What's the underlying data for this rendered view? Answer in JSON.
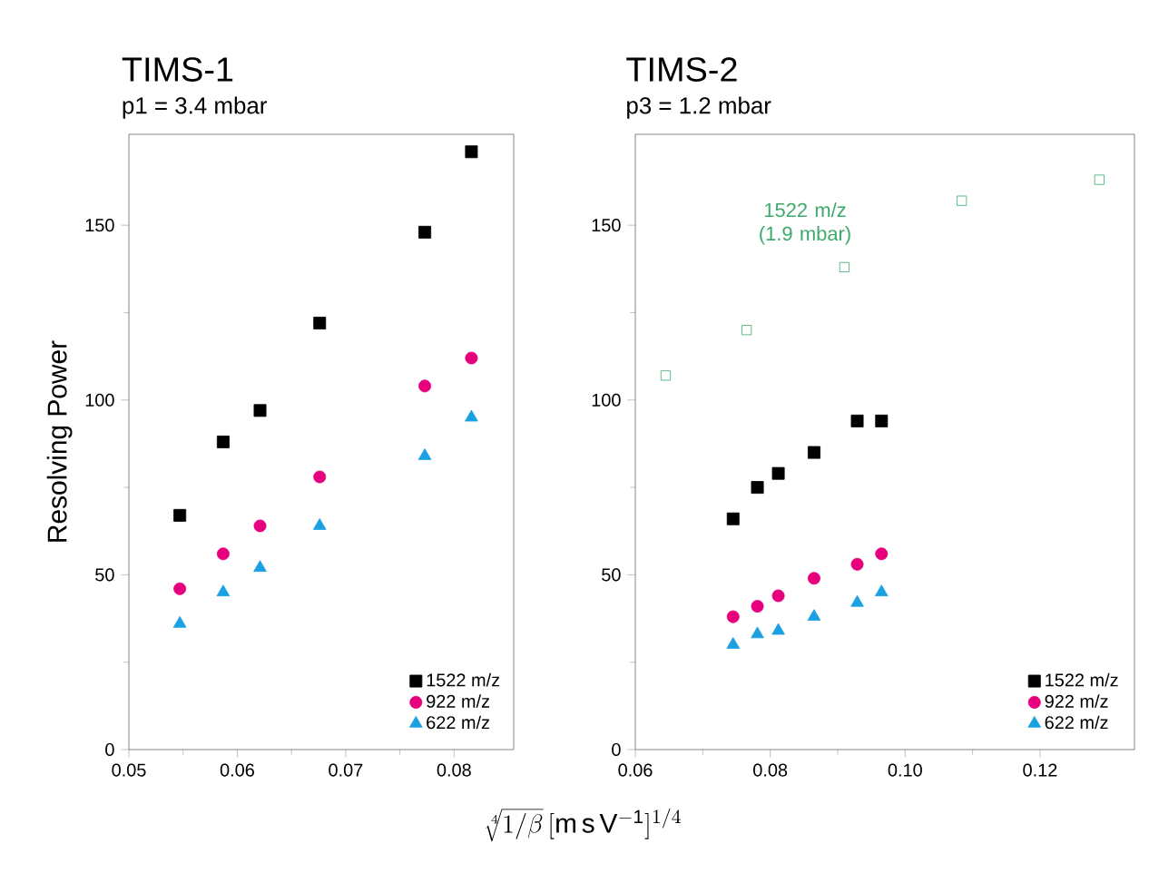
{
  "chart_data": [
    {
      "type": "scatter",
      "title": "TIMS-1",
      "subtitle": "p1 = 3.4 mbar",
      "ylabel": "Resolving Power",
      "xlabel": "\\sqrt[4]{1/\\beta}\\,[\\mathrm{m\\,s\\,V^{-1}}]^{1/4}",
      "xlim": [
        0.05,
        0.0855
      ],
      "ylim": [
        0,
        176
      ],
      "xticks": [
        0.05,
        0.06,
        0.07,
        0.08
      ],
      "yticks": [
        0,
        50,
        100,
        150
      ],
      "legend": "bottom right",
      "grid": false,
      "x": [
        0.0547,
        0.0587,
        0.0621,
        0.0676,
        0.0773,
        0.0816
      ],
      "series": [
        {
          "name": "1522 m/z",
          "color": "#000000",
          "marker": "square",
          "values": [
            67,
            88,
            97,
            122,
            148,
            171
          ]
        },
        {
          "name": "922 m/z",
          "color": "#e6007e",
          "marker": "circle",
          "values": [
            46,
            56,
            64,
            78,
            104,
            112
          ]
        },
        {
          "name": "622 m/z",
          "color": "#1ba1e2",
          "marker": "triangle",
          "values": [
            36,
            45,
            52,
            64,
            84,
            95
          ]
        }
      ]
    },
    {
      "type": "scatter",
      "title": "TIMS-2",
      "subtitle": "p3 = 1.2 mbar",
      "xlim": [
        0.06,
        0.134
      ],
      "ylim": [
        0,
        176
      ],
      "xticks": [
        0.06,
        0.08,
        {
          "value": 0.1,
          "label": "0.10"
        },
        0.12
      ],
      "yticks": [
        0,
        50,
        100,
        150
      ],
      "legend": "bottom right",
      "grid": false,
      "annotations": [
        "1522 m/z (1.9 mbar)"
      ],
      "series": [
        {
          "name": "1522 m/z",
          "color": "#000000",
          "marker": "square",
          "x": [
            0.0745,
            0.0781,
            0.0812,
            0.0865,
            0.0929,
            0.0965
          ],
          "values": [
            66,
            75,
            79,
            85,
            94,
            94
          ]
        },
        {
          "name": "922 m/z",
          "color": "#e6007e",
          "marker": "circle",
          "x": [
            0.0745,
            0.0781,
            0.0812,
            0.0865,
            0.0929,
            0.0965
          ],
          "values": [
            38,
            41,
            44,
            49,
            53,
            56
          ]
        },
        {
          "name": "622 m/z",
          "color": "#1ba1e2",
          "marker": "triangle",
          "x": [
            0.0745,
            0.0781,
            0.0812,
            0.0865,
            0.0929,
            0.0965
          ],
          "values": [
            30,
            33,
            34,
            38,
            42,
            45
          ]
        },
        {
          "color": "#3aaa6a",
          "marker": "square",
          "x": [
            0.0645,
            0.0765,
            0.091,
            0.1084,
            0.1288
          ],
          "values": [
            107,
            120,
            138,
            157,
            163
          ]
        }
      ]
    }
  ]
}
